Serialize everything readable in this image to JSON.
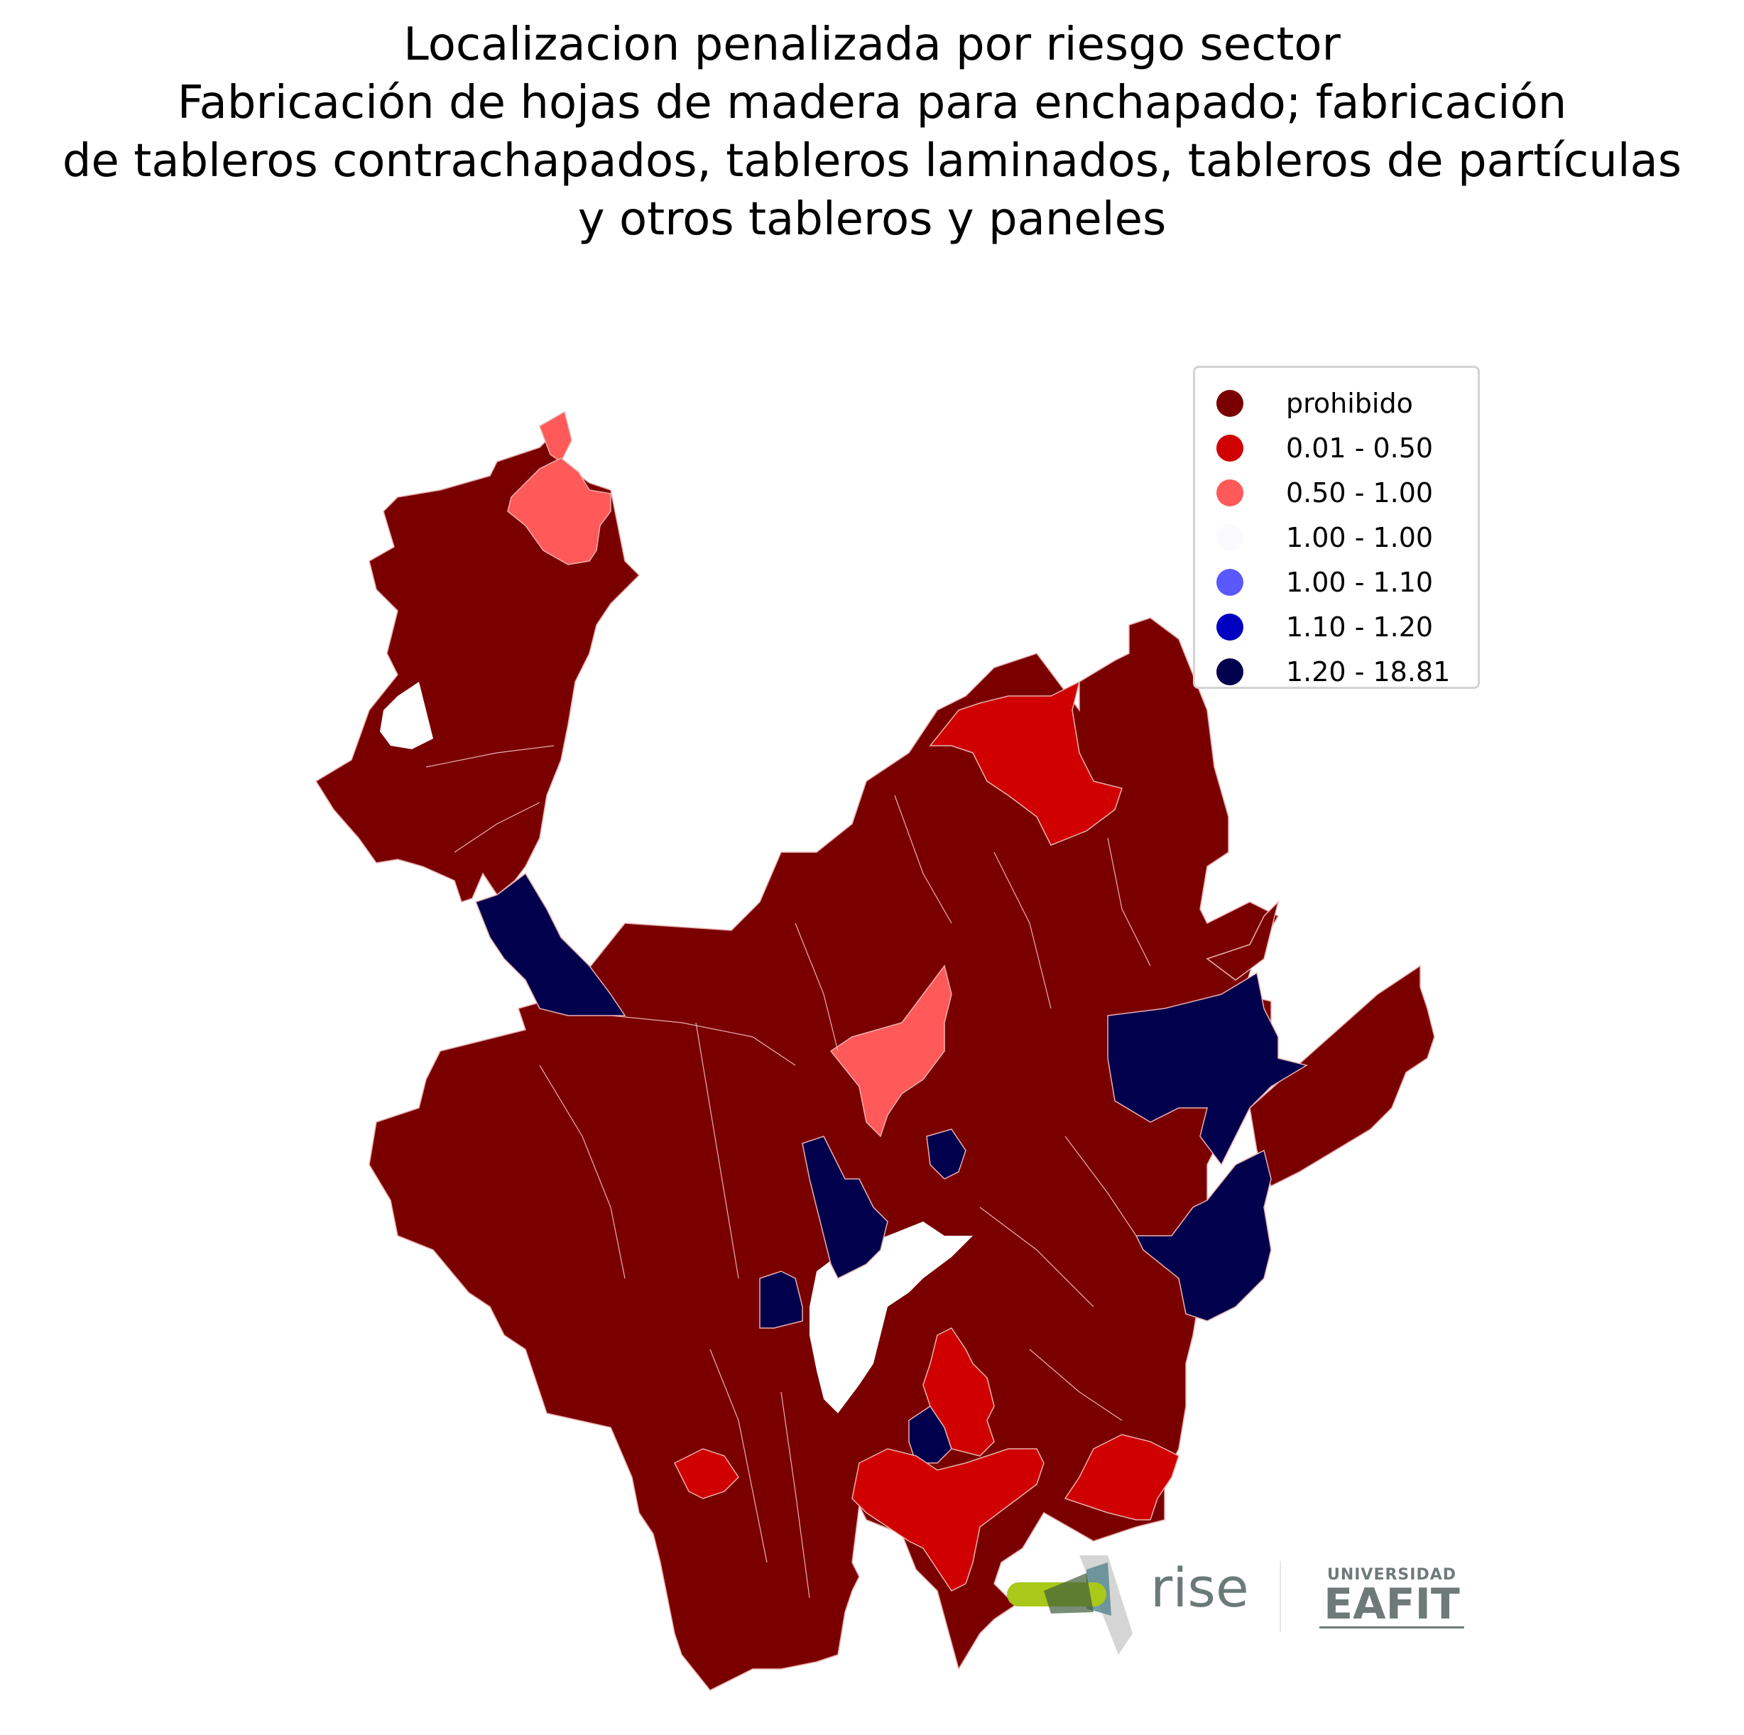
{
  "title_lines": [
    "Localizacion penalizada por riesgo sector",
    "Fabricación de hojas de madera para enchapado; fabricación",
    "de tableros contrachapados, tableros laminados, tableros de partículas",
    "y otros tableros y paneles"
  ],
  "legend": [
    {
      "label": "prohibido",
      "color": "#7a0000"
    },
    {
      "label": "0.01 - 0.50",
      "color": "#d00000"
    },
    {
      "label": "0.50 - 1.00",
      "color": "#ff5959"
    },
    {
      "label": "1.00 - 1.00",
      "color": "#fafaff"
    },
    {
      "label": "1.00 - 1.10",
      "color": "#5959ff"
    },
    {
      "label": "1.10 - 1.20",
      "color": "#0000c0"
    },
    {
      "label": "1.20 - 18.81",
      "color": "#00004c"
    }
  ],
  "logos": {
    "rise": "rise",
    "university_top": "UNIVERSIDAD",
    "university_main": "EAFIT"
  }
}
